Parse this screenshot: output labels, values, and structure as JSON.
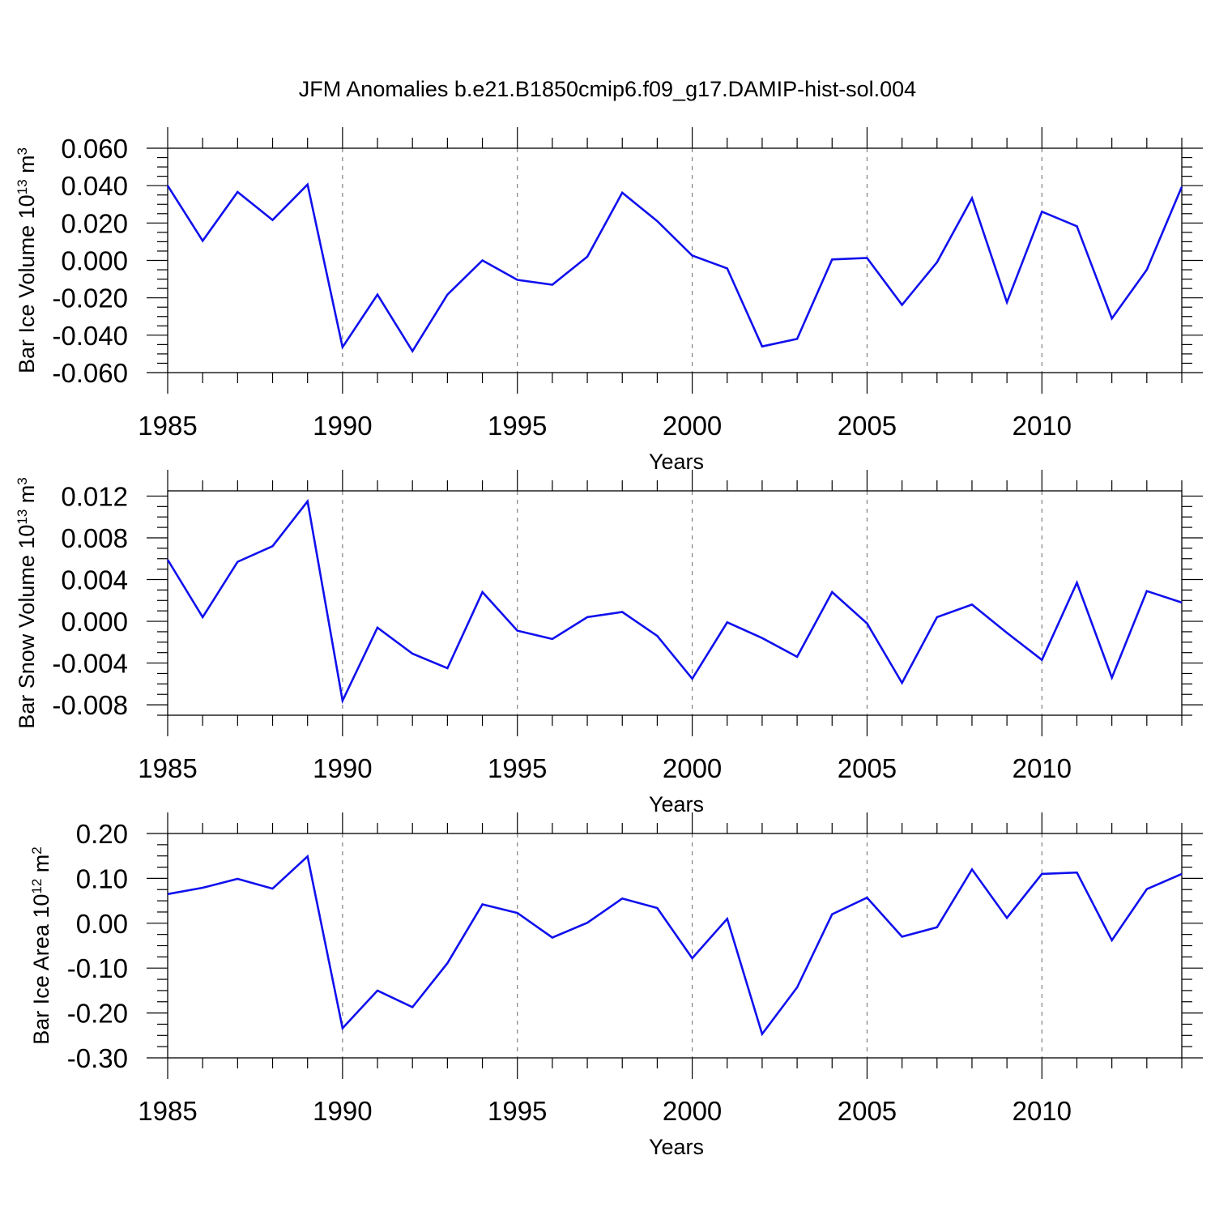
{
  "figure": {
    "title": "JFM Anomalies b.e21.B1850cmip6.f09_g17.DAMIP-hist-sol.004",
    "line_color": "#1010ee",
    "grid_color": "#808080"
  },
  "chart_data": [
    {
      "type": "line",
      "title": "",
      "xlabel": "Years",
      "ylabel": {
        "base": "Bar Ice Volume 10",
        "exp": "13",
        "unit": " m",
        "unit_exp": "3"
      },
      "xlim": [
        1985,
        2014
      ],
      "ylim": [
        -0.06,
        0.06
      ],
      "x_ticks": [
        "1985",
        "1990",
        "1995",
        "2000",
        "2005",
        "2010"
      ],
      "y_ticks": [
        "0.060",
        "0.040",
        "0.020",
        "0.000",
        "-0.020",
        "-0.040",
        "-0.060"
      ],
      "y_tick_values": [
        0.06,
        0.04,
        0.02,
        0.0,
        -0.02,
        -0.04,
        -0.06
      ],
      "y_minor_step": 0.005,
      "grid": "vertical dashed at major x ticks",
      "x": [
        1985,
        1986,
        1987,
        1988,
        1989,
        1990,
        1991,
        1992,
        1993,
        1994,
        1995,
        1996,
        1997,
        1998,
        1999,
        2000,
        2001,
        2002,
        2003,
        2004,
        2005,
        2006,
        2007,
        2008,
        2009,
        2010,
        2011,
        2012,
        2013,
        2014
      ],
      "series": [
        {
          "values": [
            0.04,
            0.0105,
            0.0366,
            0.0216,
            0.0406,
            -0.0464,
            -0.0183,
            -0.0485,
            -0.0183,
            0.0,
            -0.0104,
            -0.013,
            0.002,
            0.0362,
            0.021,
            0.0026,
            -0.0043,
            -0.046,
            -0.042,
            0.0005,
            0.0013,
            -0.0238,
            -0.001,
            0.0333,
            -0.0224,
            0.0261,
            0.0183,
            -0.031,
            -0.005,
            0.0394
          ]
        }
      ]
    },
    {
      "type": "line",
      "title": "",
      "xlabel": "Years",
      "ylabel": {
        "base": "Bar Snow Volume 10",
        "exp": "13",
        "unit": " m",
        "unit_exp": "3"
      },
      "xlim": [
        1985,
        2014
      ],
      "ylim": [
        -0.009,
        0.0125
      ],
      "x_ticks": [
        "1985",
        "1990",
        "1995",
        "2000",
        "2005",
        "2010"
      ],
      "y_ticks": [
        "0.012",
        "0.008",
        "0.004",
        "0.000",
        "-0.004",
        "-0.008"
      ],
      "y_tick_values": [
        0.012,
        0.008,
        0.004,
        0.0,
        -0.004,
        -0.008
      ],
      "y_minor_step": 0.001,
      "grid": "vertical dashed at major x ticks",
      "x": [
        1985,
        1986,
        1987,
        1988,
        1989,
        1990,
        1991,
        1992,
        1993,
        1994,
        1995,
        1996,
        1997,
        1998,
        1999,
        2000,
        2001,
        2002,
        2003,
        2004,
        2005,
        2006,
        2007,
        2008,
        2009,
        2010,
        2011,
        2012,
        2013,
        2014
      ],
      "series": [
        {
          "values": [
            0.0059,
            0.0004,
            0.0057,
            0.0072,
            0.0115,
            -0.0076,
            -0.0006,
            -0.0031,
            -0.0045,
            0.0028,
            -0.0009,
            -0.0017,
            0.0004,
            0.0009,
            -0.0014,
            -0.0055,
            -0.0001,
            -0.0016,
            -0.0034,
            0.0028,
            -0.0002,
            -0.0059,
            0.0004,
            0.0016,
            -0.0011,
            -0.0037,
            0.0037,
            -0.0054,
            0.0029,
            0.0018
          ]
        }
      ]
    },
    {
      "type": "line",
      "title": "",
      "xlabel": "Years",
      "ylabel": {
        "base": "Bar Ice Area 10",
        "exp": "12",
        "unit": " m",
        "unit_exp": "2"
      },
      "xlim": [
        1985,
        2014
      ],
      "ylim": [
        -0.3,
        0.2
      ],
      "x_ticks": [
        "1985",
        "1990",
        "1995",
        "2000",
        "2005",
        "2010"
      ],
      "y_ticks": [
        "0.20",
        "0.10",
        "0.00",
        "-0.10",
        "-0.20",
        "-0.30"
      ],
      "y_tick_values": [
        0.2,
        0.1,
        0.0,
        -0.1,
        -0.2,
        -0.3
      ],
      "y_minor_step": 0.025,
      "grid": "vertical dashed at major x ticks",
      "x": [
        1985,
        1986,
        1987,
        1988,
        1989,
        1990,
        1991,
        1992,
        1993,
        1994,
        1995,
        1996,
        1997,
        1998,
        1999,
        2000,
        2001,
        2002,
        2003,
        2004,
        2005,
        2006,
        2007,
        2008,
        2009,
        2010,
        2011,
        2012,
        2013,
        2014
      ],
      "series": [
        {
          "values": [
            0.065,
            0.079,
            0.099,
            0.077,
            0.149,
            -0.234,
            -0.15,
            -0.187,
            -0.089,
            0.042,
            0.023,
            -0.032,
            0.001,
            0.055,
            0.034,
            -0.078,
            0.01,
            -0.247,
            -0.143,
            0.02,
            0.057,
            -0.03,
            -0.009,
            0.12,
            0.012,
            0.11,
            0.113,
            -0.038,
            0.076,
            0.11
          ]
        }
      ]
    }
  ]
}
